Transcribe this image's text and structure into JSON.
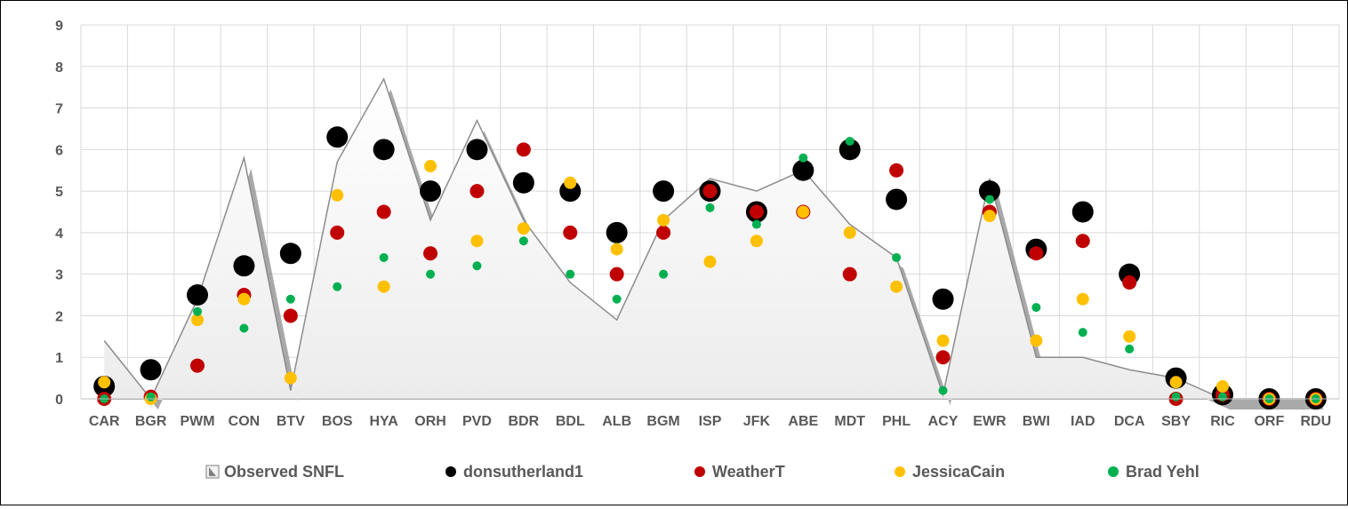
{
  "chart_data": {
    "type": "scatter",
    "categories": [
      "CAR",
      "BGR",
      "PWM",
      "CON",
      "BTV",
      "BOS",
      "HYA",
      "ORH",
      "PVD",
      "BDR",
      "BDL",
      "ALB",
      "BGM",
      "ISP",
      "JFK",
      "ABE",
      "MDT",
      "PHL",
      "ACY",
      "EWR",
      "BWI",
      "IAD",
      "DCA",
      "SBY",
      "RIC",
      "ORF",
      "RDU"
    ],
    "ylim": [
      0,
      9
    ],
    "yticks": [
      0,
      1,
      2,
      3,
      4,
      5,
      6,
      7,
      8,
      9
    ],
    "grid": true,
    "legend_position": "bottom",
    "area_series": {
      "name": "Observed SNFL",
      "values": [
        1.4,
        0.0,
        2.4,
        5.8,
        0.2,
        5.7,
        7.7,
        4.3,
        6.7,
        4.3,
        2.8,
        1.9,
        4.3,
        5.3,
        5.0,
        5.5,
        4.2,
        3.4,
        0.1,
        5.3,
        1.0,
        1.0,
        0.7,
        0.5,
        0.0,
        0.0,
        0.0
      ]
    },
    "series": [
      {
        "name": "donsutherland1",
        "color": "#000000",
        "radius": 12,
        "values": [
          0.3,
          0.7,
          2.5,
          3.2,
          3.5,
          6.3,
          6.0,
          5.0,
          6.0,
          5.2,
          5.0,
          4.0,
          5.0,
          5.0,
          4.5,
          5.5,
          6.0,
          4.8,
          2.4,
          5.0,
          3.6,
          4.5,
          3.0,
          0.5,
          0.1,
          0.0,
          0.0
        ]
      },
      {
        "name": "WeatherT",
        "color": "#C00000",
        "radius": 8,
        "values": [
          0.0,
          0.05,
          0.8,
          2.5,
          2.0,
          4.0,
          4.5,
          3.5,
          5.0,
          6.0,
          4.0,
          3.0,
          4.0,
          5.0,
          4.5,
          4.5,
          3.0,
          5.5,
          1.0,
          4.5,
          3.5,
          3.8,
          2.8,
          0.0,
          0.1,
          0.0,
          0.0
        ]
      },
      {
        "name": "JessicaCain",
        "color": "#FFC000",
        "radius": 7,
        "values": [
          0.4,
          0.0,
          1.9,
          2.4,
          0.5,
          4.9,
          2.7,
          5.6,
          3.8,
          4.1,
          5.2,
          3.6,
          4.3,
          3.3,
          3.8,
          4.5,
          4.0,
          2.7,
          1.4,
          4.4,
          1.4,
          2.4,
          1.5,
          0.4,
          0.3,
          0.0,
          0.0
        ]
      },
      {
        "name": "Brad Yehl",
        "color": "#00B050",
        "radius": 5,
        "values": [
          0.0,
          0.05,
          2.1,
          1.7,
          2.4,
          2.7,
          3.4,
          3.0,
          3.2,
          3.8,
          3.0,
          2.4,
          3.0,
          4.6,
          4.2,
          5.8,
          6.2,
          3.4,
          0.2,
          4.8,
          2.2,
          1.6,
          1.2,
          0.05,
          0.05,
          0.0,
          0.0
        ]
      }
    ]
  }
}
